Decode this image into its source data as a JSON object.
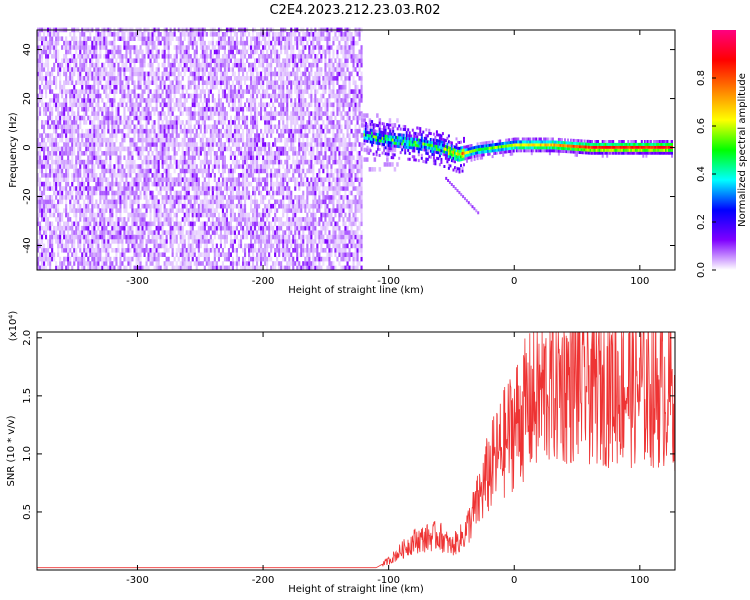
{
  "title": "C2E4.2023.212.23.03.R02",
  "chart_data": [
    {
      "type": "heatmap",
      "xlabel": "Height of straight line (km)",
      "ylabel": "Frequency (Hz)",
      "xlim": [
        -380,
        128
      ],
      "ylim": [
        -50,
        48
      ],
      "xticks": [
        -300,
        -200,
        -100,
        0,
        100
      ],
      "yticks": [
        -40,
        -20,
        0,
        20,
        40
      ],
      "colorbar": {
        "label": "Normalized spectral amplitude",
        "range": [
          0,
          1
        ],
        "ticks": [
          "0.0",
          "0.2",
          "0.4",
          "0.6",
          "0.8"
        ],
        "colors": [
          "#ffffff",
          "#7f00ff",
          "#0000ff",
          "#00ffff",
          "#00ff00",
          "#ffff00",
          "#ff8000",
          "#ff0000",
          "#ff0080"
        ]
      },
      "features": {
        "noise_region_x": [
          -380,
          -122
        ],
        "signal_trace": [
          {
            "x": -120,
            "y": 5,
            "amp": 0.4
          },
          {
            "x": -100,
            "y": 3,
            "amp": 0.45
          },
          {
            "x": -80,
            "y": 2,
            "amp": 0.45
          },
          {
            "x": -60,
            "y": 0,
            "amp": 0.45
          },
          {
            "x": -45,
            "y": -3,
            "amp": 0.7
          },
          {
            "x": -30,
            "y": -1,
            "amp": 0.5
          },
          {
            "x": 0,
            "y": 1,
            "amp": 0.6
          },
          {
            "x": 30,
            "y": 1,
            "amp": 0.7
          },
          {
            "x": 60,
            "y": 0,
            "amp": 0.85
          },
          {
            "x": 125,
            "y": 0,
            "amp": 0.85
          }
        ]
      }
    },
    {
      "type": "line",
      "xlabel": "Height of straight line (km)",
      "ylabel": "SNR (10 * v/v)",
      "multiplier": "(x10⁴)",
      "xlim": [
        -380,
        128
      ],
      "ylim": [
        0,
        2.05
      ],
      "xticks": [
        -300,
        -200,
        -100,
        0,
        100
      ],
      "yticks": [
        0.5,
        1.0,
        1.5,
        2.0
      ],
      "color": "#ee3333",
      "envelope": {
        "x": [
          -380,
          -110,
          -100,
          -80,
          -60,
          -50,
          -40,
          -30,
          -20,
          -10,
          0,
          10,
          20,
          30,
          50,
          128
        ],
        "y": [
          0.02,
          0.02,
          0.08,
          0.25,
          0.3,
          0.2,
          0.3,
          0.55,
          0.85,
          1.05,
          1.25,
          1.4,
          1.5,
          1.6,
          1.62,
          1.55
        ]
      }
    }
  ]
}
